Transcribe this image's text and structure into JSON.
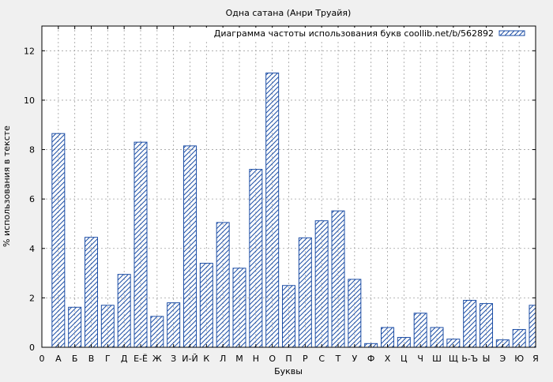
{
  "chart_data": {
    "type": "bar",
    "title": "Одна сатана (Анри Труайя)",
    "xlabel": "Буквы",
    "ylabel": "% использования в тексте",
    "legend": {
      "label": "Диаграмма частоты использования букв coollib.net/b/562892",
      "position": "top-right"
    },
    "x_tick_start_label": "0",
    "categories": [
      "А",
      "Б",
      "В",
      "Г",
      "Д",
      "Е-Ё",
      "Ж",
      "З",
      "И-Й",
      "К",
      "Л",
      "М",
      "Н",
      "О",
      "П",
      "Р",
      "С",
      "Т",
      "У",
      "Ф",
      "Х",
      "Ц",
      "Ч",
      "Ш",
      "Щ",
      "Ь-Ъ",
      "Ы",
      "Э",
      "Ю",
      "Я"
    ],
    "values": [
      8.65,
      1.62,
      4.45,
      1.7,
      2.95,
      8.3,
      1.25,
      1.8,
      8.15,
      3.4,
      5.05,
      3.2,
      7.2,
      11.1,
      2.5,
      4.43,
      5.12,
      5.52,
      2.75,
      0.15,
      0.8,
      0.4,
      1.38,
      0.8,
      0.33,
      1.9,
      1.77,
      0.3,
      0.72,
      1.7
    ],
    "ylim": [
      0,
      13
    ],
    "yticks": [
      0,
      2,
      4,
      6,
      8,
      10,
      12
    ],
    "grid": true,
    "colors": {
      "bar_stroke": "#1e4fa6",
      "hatch": "#1e4fa6",
      "plot_bg": "#ffffff",
      "page_bg": "#f0f0f0",
      "grid": "#a0a0a0"
    }
  }
}
